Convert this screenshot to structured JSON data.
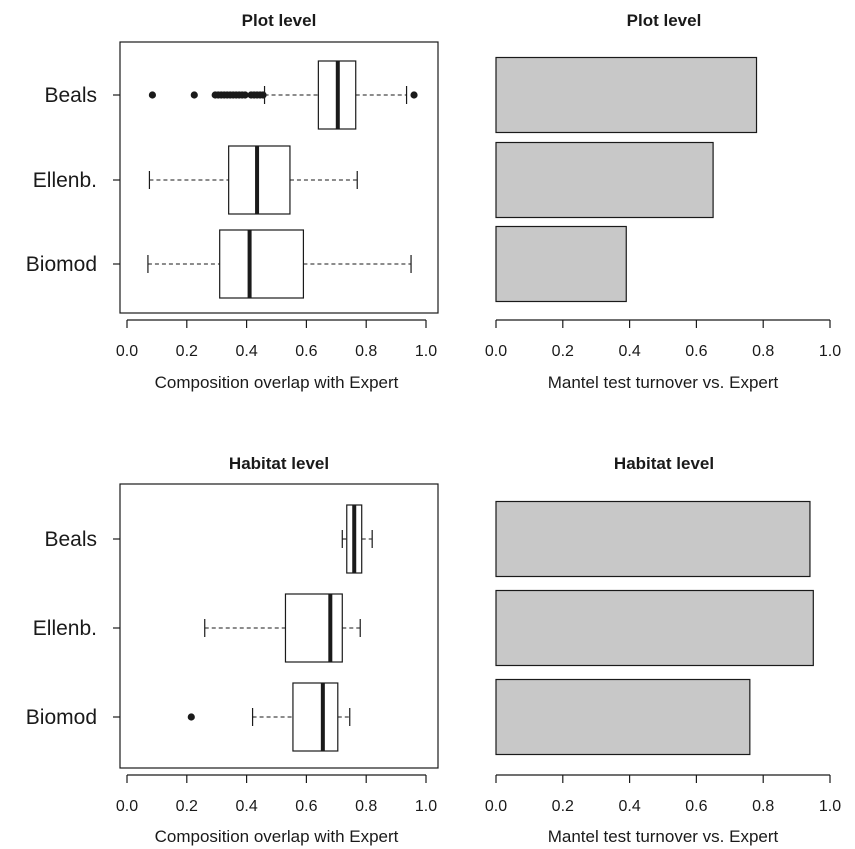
{
  "chart_data": [
    {
      "type": "boxplot",
      "title": "Plot level",
      "xlabel": "Composition overlap with Expert",
      "xlim": [
        0,
        1
      ],
      "xticks": [
        "0.0",
        "0.2",
        "0.4",
        "0.6",
        "0.8",
        "1.0"
      ],
      "categories": [
        "Beals",
        "Ellenb.",
        "Biomod"
      ],
      "boxes": [
        {
          "label": "Beals",
          "min": 0.46,
          "q1": 0.64,
          "median": 0.705,
          "q3": 0.765,
          "max": 0.935,
          "outliers": [
            0.085,
            0.225,
            0.295,
            0.305,
            0.315,
            0.325,
            0.335,
            0.345,
            0.355,
            0.365,
            0.375,
            0.385,
            0.395,
            0.415,
            0.425,
            0.435,
            0.445,
            0.455,
            0.96
          ]
        },
        {
          "label": "Ellenb.",
          "min": 0.075,
          "q1": 0.34,
          "median": 0.435,
          "q3": 0.545,
          "max": 0.77,
          "outliers": []
        },
        {
          "label": "Biomod",
          "min": 0.07,
          "q1": 0.31,
          "median": 0.41,
          "q3": 0.59,
          "max": 0.95,
          "outliers": []
        }
      ]
    },
    {
      "type": "bar",
      "orientation": "horizontal",
      "title": "Plot level",
      "xlabel": "Mantel test turnover vs. Expert",
      "xlim": [
        0,
        1
      ],
      "xticks": [
        "0.0",
        "0.2",
        "0.4",
        "0.6",
        "0.8",
        "1.0"
      ],
      "categories": [
        "Beals",
        "Ellenb.",
        "Biomod"
      ],
      "values": [
        0.78,
        0.65,
        0.39
      ]
    },
    {
      "type": "boxplot",
      "title": "Habitat level",
      "xlabel": "Composition overlap with Expert",
      "xlim": [
        0,
        1
      ],
      "xticks": [
        "0.0",
        "0.2",
        "0.4",
        "0.6",
        "0.8",
        "1.0"
      ],
      "categories": [
        "Beals",
        "Ellenb.",
        "Biomod"
      ],
      "boxes": [
        {
          "label": "Beals",
          "min": 0.72,
          "q1": 0.735,
          "median": 0.76,
          "q3": 0.785,
          "max": 0.82,
          "outliers": []
        },
        {
          "label": "Ellenb.",
          "min": 0.26,
          "q1": 0.53,
          "median": 0.68,
          "q3": 0.72,
          "max": 0.78,
          "outliers": []
        },
        {
          "label": "Biomod",
          "min": 0.42,
          "q1": 0.555,
          "median": 0.655,
          "q3": 0.705,
          "max": 0.745,
          "outliers": [
            0.215
          ]
        }
      ]
    },
    {
      "type": "bar",
      "orientation": "horizontal",
      "title": "Habitat level",
      "xlabel": "Mantel test turnover vs. Expert",
      "xlim": [
        0,
        1
      ],
      "xticks": [
        "0.0",
        "0.2",
        "0.4",
        "0.6",
        "0.8",
        "1.0"
      ],
      "categories": [
        "Beals",
        "Ellenb.",
        "Biomod"
      ],
      "values": [
        0.94,
        0.95,
        0.76
      ]
    }
  ],
  "colors": {
    "bar_fill": "#c8c8c8",
    "stroke": "#1a1a1a",
    "background": "#ffffff"
  }
}
